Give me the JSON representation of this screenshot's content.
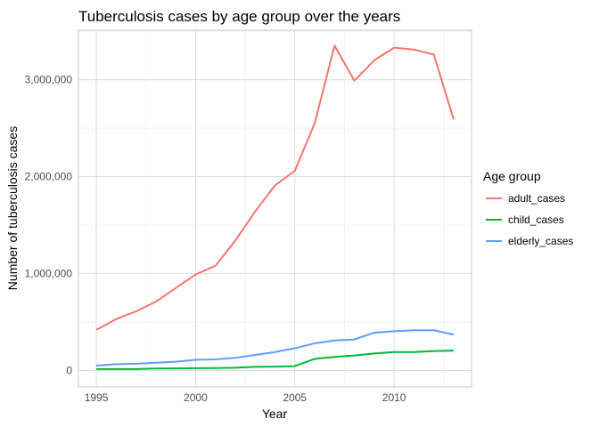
{
  "chart_data": {
    "type": "line",
    "title": "Tuberculosis cases by age group over the years",
    "xlabel": "Year",
    "ylabel": "Number of tuberculosis cases",
    "x": [
      1995,
      1996,
      1997,
      1998,
      1999,
      2000,
      2001,
      2002,
      2003,
      2004,
      2005,
      2006,
      2007,
      2008,
      2009,
      2010,
      2011,
      2012,
      2013
    ],
    "xlim": [
      1994.1,
      2013.9
    ],
    "ylim": [
      -170000,
      3510000
    ],
    "xticks": [
      1995,
      2000,
      2005,
      2010
    ],
    "xtick_labels": [
      "1995",
      "2000",
      "2005",
      "2010"
    ],
    "yticks": [
      0,
      1000000,
      2000000,
      3000000
    ],
    "ytick_labels": [
      "0",
      "1,000,000",
      "2,000,000",
      "3,000,000"
    ],
    "grid": true,
    "legend": {
      "title": "Age group",
      "placement": "right"
    },
    "series": [
      {
        "name": "adult_cases",
        "color": "#f8766d",
        "values": [
          420000,
          530000,
          610000,
          710000,
          850000,
          990000,
          1080000,
          1340000,
          1640000,
          1910000,
          2060000,
          2550000,
          3350000,
          2990000,
          3200000,
          3330000,
          3310000,
          3260000,
          2590000
        ]
      },
      {
        "name": "child_cases",
        "color": "#00ba38",
        "values": [
          15000,
          15000,
          15000,
          20000,
          22000,
          24000,
          25000,
          28000,
          38000,
          40000,
          45000,
          120000,
          140000,
          155000,
          175000,
          190000,
          190000,
          200000,
          205000
        ]
      },
      {
        "name": "elderly_cases",
        "color": "#619cff",
        "values": [
          50000,
          65000,
          70000,
          80000,
          90000,
          110000,
          115000,
          130000,
          160000,
          190000,
          230000,
          280000,
          310000,
          320000,
          390000,
          405000,
          415000,
          415000,
          370000
        ]
      }
    ]
  }
}
